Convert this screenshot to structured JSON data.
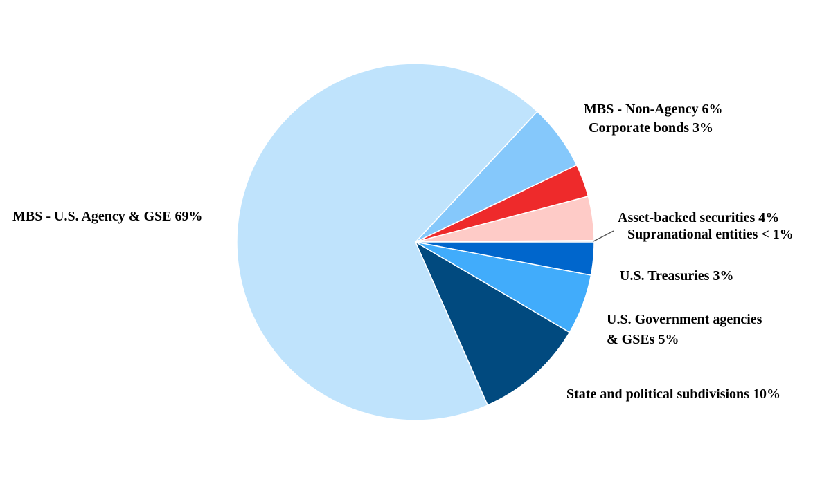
{
  "chart_data": {
    "type": "pie",
    "title": "",
    "slices": [
      {
        "label": "MBS - U.S. Agency & GSE 69%",
        "value": 69,
        "color": "#bfe3fc"
      },
      {
        "label": "MBS - Non-Agency 6%",
        "value": 6,
        "color": "#85c8fb"
      },
      {
        "label": "Corporate bonds 3%",
        "value": 3,
        "color": "#ee2a2b"
      },
      {
        "label": "Asset-backed securities 4%",
        "value": 4,
        "color": "#fecbc7"
      },
      {
        "label": "Supranational entities < 1%",
        "value": 0.15,
        "color": "#9aa4ab"
      },
      {
        "label": "U.S. Treasuries 3%",
        "value": 3,
        "color": "#0066cc"
      },
      {
        "label": "U.S. Government agencies & GSEs 5%",
        "label_lines": [
          "U.S. Government agencies",
          "& GSEs 5%"
        ],
        "value": 5.5,
        "color": "#41acfb"
      },
      {
        "label": "State and political subdivisions 10%",
        "value": 10,
        "color": "#014a7f"
      }
    ]
  }
}
